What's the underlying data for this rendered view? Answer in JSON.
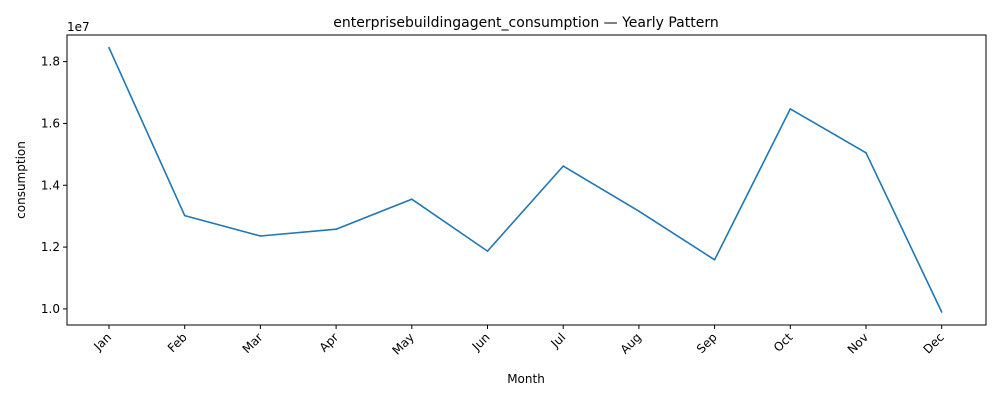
{
  "chart_data": {
    "type": "line",
    "title": "enterprisebuildingagent_consumption — Yearly Pattern",
    "xlabel": "Month",
    "ylabel": "consumption",
    "y_multiplier_label": "1e7",
    "categories": [
      "Jan",
      "Feb",
      "Mar",
      "Apr",
      "May",
      "Jun",
      "Jul",
      "Aug",
      "Sep",
      "Oct",
      "Nov",
      "Dec"
    ],
    "series": [
      {
        "values": [
          18450000,
          13020000,
          12360000,
          12580000,
          13550000,
          11870000,
          14620000,
          13160000,
          11590000,
          16470000,
          15050000,
          9900000
        ],
        "color": "#1f77b4"
      }
    ],
    "ylim": [
      9480000,
      18860000
    ],
    "yticks": [
      10000000,
      12000000,
      14000000,
      16000000,
      18000000
    ],
    "ytick_labels": [
      "1.0",
      "1.2",
      "1.4",
      "1.6",
      "1.8"
    ],
    "grid": false,
    "legend": "none"
  }
}
